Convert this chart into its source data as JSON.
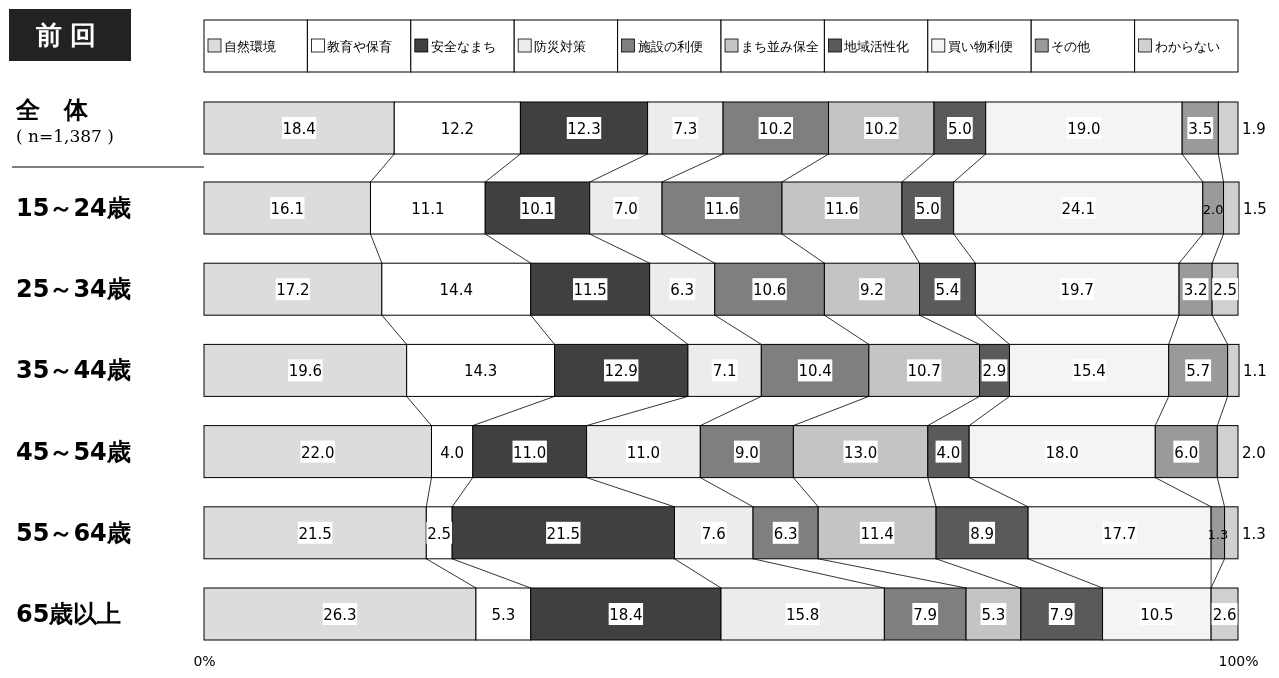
{
  "chart_data": {
    "type": "bar",
    "orientation": "horizontal",
    "stacked": true,
    "title": "前回",
    "categories": [
      "全　体",
      "15～24歳",
      "25～34歳",
      "35～44歳",
      "45～54歳",
      "55～64歳",
      "65歳以上"
    ],
    "annotations": [
      "( n=1,387 )"
    ],
    "xlim": [
      0,
      100
    ],
    "xticks": [
      {
        "value": 0,
        "label": "0%"
      },
      {
        "value": 100,
        "label": "100%"
      }
    ],
    "tick_labels": "x",
    "legend": "top",
    "grid": false,
    "series": [
      {
        "name": "自然環境",
        "color": "#dcdcdc",
        "values": [
          18.4,
          16.1,
          17.2,
          19.6,
          22.0,
          21.5,
          26.3
        ],
        "value_labels": [
          "18.4",
          "16.1",
          "17.2",
          "19.6",
          "22.0",
          "21.5",
          "26.3"
        ]
      },
      {
        "name": "教育や保育",
        "color": "#ffffff",
        "values": [
          12.2,
          11.1,
          14.4,
          14.3,
          4.0,
          2.5,
          5.3
        ],
        "value_labels": [
          "12.2",
          "11.1",
          "14.4",
          "14.3",
          "4.0",
          "2.5",
          "5.3"
        ]
      },
      {
        "name": "安全なまち",
        "color": "#404040",
        "values": [
          12.3,
          10.1,
          11.5,
          12.9,
          11.0,
          21.5,
          18.4
        ],
        "value_labels": [
          "12.3",
          "10.1",
          "11.5",
          "12.9",
          "11.0",
          "21.5",
          "18.4"
        ]
      },
      {
        "name": "防災対策",
        "color": "#ececec",
        "values": [
          7.3,
          7.0,
          6.3,
          7.1,
          11.0,
          7.6,
          15.8
        ],
        "value_labels": [
          "7.3",
          "7.0",
          "6.3",
          "7.1",
          "11.0",
          "7.6",
          "15.8"
        ]
      },
      {
        "name": "施設の利便",
        "color": "#7f7f7f",
        "values": [
          10.2,
          11.6,
          10.6,
          10.4,
          9.0,
          6.3,
          7.9
        ],
        "value_labels": [
          "10.2",
          "11.6",
          "10.6",
          "10.4",
          "9.0",
          "6.3",
          "7.9"
        ]
      },
      {
        "name": "まち並み保全",
        "color": "#c4c4c4",
        "values": [
          10.2,
          11.6,
          9.2,
          10.7,
          13.0,
          11.4,
          5.3
        ],
        "value_labels": [
          "10.2",
          "11.6",
          "9.2",
          "10.7",
          "13.0",
          "11.4",
          "5.3"
        ]
      },
      {
        "name": "地域活性化",
        "color": "#5a5a5a",
        "values": [
          5.0,
          5.0,
          5.4,
          2.9,
          4.0,
          8.9,
          7.9
        ],
        "value_labels": [
          "5.0",
          "5.0",
          "5.4",
          "2.9",
          "4.0",
          "8.9",
          "7.9"
        ]
      },
      {
        "name": "買い物利便",
        "color": "#f4f4f4",
        "values": [
          19.0,
          24.1,
          19.7,
          15.4,
          18.0,
          17.7,
          10.5
        ],
        "value_labels": [
          "19.0",
          "24.1",
          "19.7",
          "15.4",
          "18.0",
          "17.7",
          "10.5"
        ]
      },
      {
        "name": "その他",
        "color": "#9a9a9a",
        "values": [
          3.5,
          2.0,
          3.2,
          5.7,
          6.0,
          1.3,
          null
        ],
        "value_labels": [
          "3.5",
          "2.0",
          "3.2",
          "5.7",
          "6.0",
          "1.3",
          null
        ]
      },
      {
        "name": "わからない",
        "color": "#d0d0d0",
        "values": [
          1.9,
          1.5,
          2.5,
          1.1,
          2.0,
          1.3,
          2.6
        ],
        "value_labels": [
          "1.9",
          "1.5",
          "2.5",
          "1.1",
          "2.0",
          "1.3",
          "2.6"
        ]
      }
    ]
  }
}
